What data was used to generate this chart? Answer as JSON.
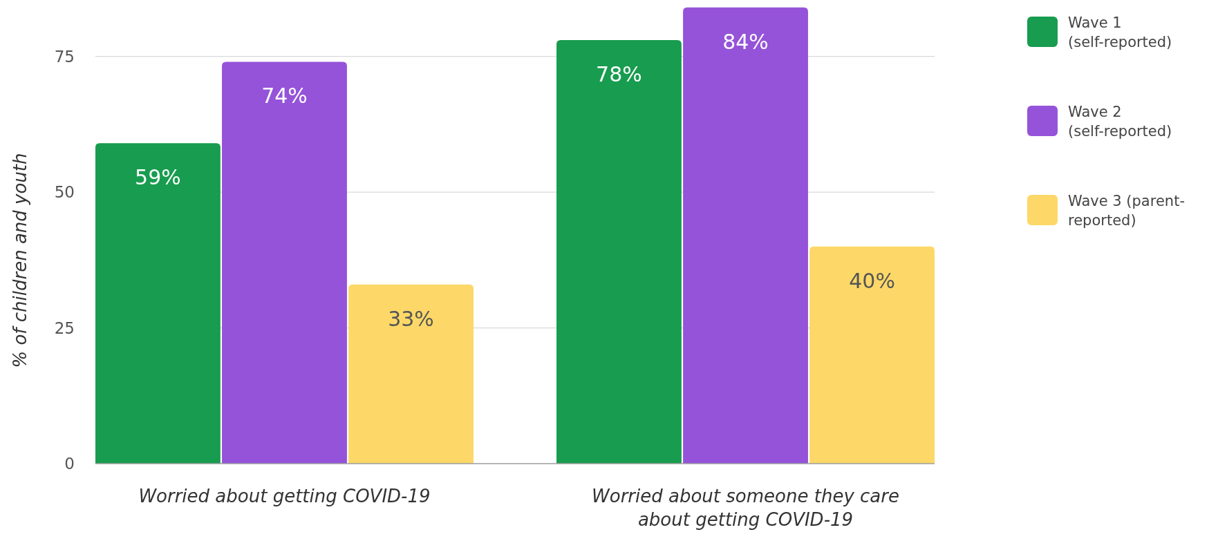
{
  "chart_data": {
    "type": "bar",
    "ylabel": "% of children and youth",
    "categories": [
      "Worried about getting COVID-19",
      "Worried about someone they care about getting COVID-19"
    ],
    "series": [
      {
        "name": "Wave 1 (self-reported)",
        "color": "#189c4f",
        "values": [
          59,
          78
        ],
        "value_labels": [
          "59%",
          "78%"
        ]
      },
      {
        "name": "Wave 2 (self-reported)",
        "color": "#9553d9",
        "values": [
          74,
          84
        ],
        "value_labels": [
          "74%",
          "84%"
        ]
      },
      {
        "name": "Wave 3 (parent-reported)",
        "color": "#fdd868",
        "values": [
          33,
          40
        ],
        "value_labels": [
          "33%",
          "40%"
        ]
      }
    ],
    "ylim": [
      0,
      85
    ],
    "yticks": [
      0,
      25,
      50,
      75
    ],
    "grid": "y",
    "legend": "right"
  }
}
